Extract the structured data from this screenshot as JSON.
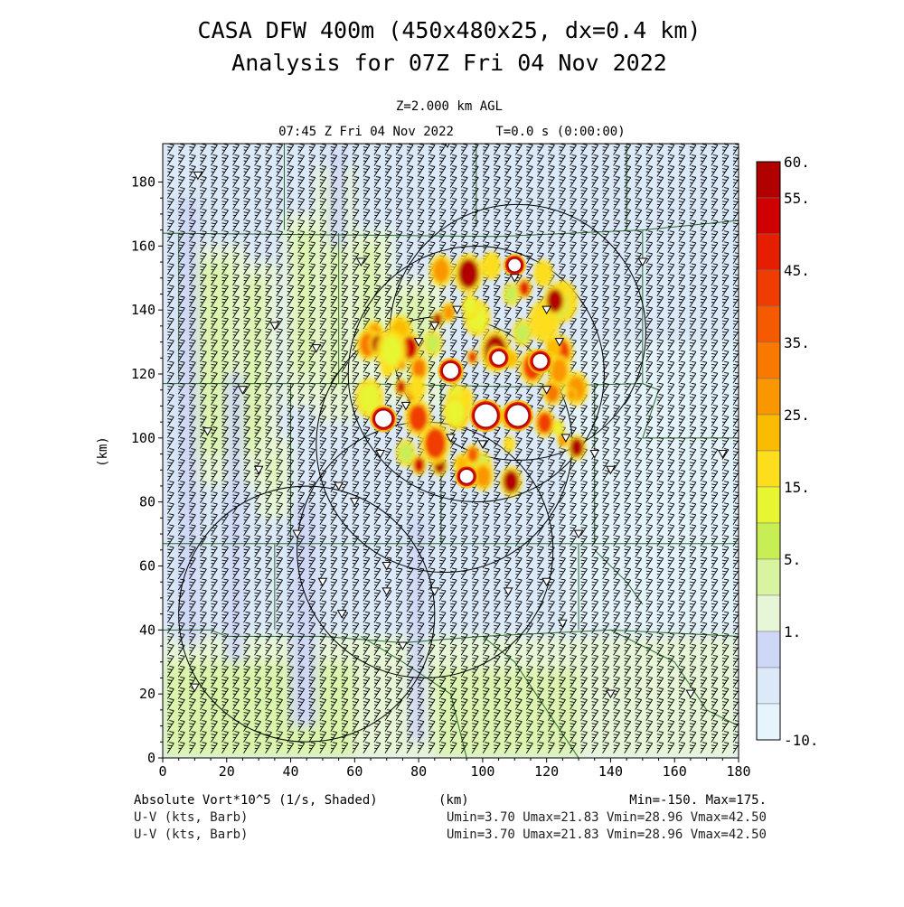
{
  "header": {
    "title_line1": "CASA DFW 400m (450x480x25, dx=0.4 km)",
    "title_line2": "Analysis for 07Z Fri 04 Nov 2022",
    "level": "Z=2.000 km AGL",
    "valid_time": "07:45 Z Fri 04 Nov 2022",
    "forecast_time": "T=0.0 s (0:00:00)"
  },
  "footer": {
    "shaded_field": "Absolute Vort*10^5 (1/s, Shaded)",
    "x_unit": "(km)",
    "shaded_range": "Min=-150. Max=175.",
    "barb_field_1": "U-V (kts, Barb)",
    "barb_range_1": "Umin=3.70 Umax=21.83 Vmin=28.96 Vmax=42.50",
    "barb_field_2": "U-V (kts, Barb)",
    "barb_range_2": "Umin=3.70 Umax=21.83 Vmin=28.96 Vmax=42.50"
  },
  "chart_data": {
    "type": "heatmap",
    "field": "Absolute Vort*10^5 (1/s)",
    "min": -150,
    "max": 175,
    "xlabel": "",
    "ylabel": "(km)",
    "xlim": [
      0,
      180
    ],
    "ylim": [
      0,
      192
    ],
    "x_ticks": [
      0,
      20,
      40,
      60,
      80,
      100,
      120,
      140,
      160,
      180
    ],
    "y_ticks": [
      0,
      20,
      40,
      60,
      80,
      100,
      120,
      140,
      160,
      180
    ],
    "x_tick_labels": [
      "0",
      "20",
      "40",
      "60",
      "80",
      "100",
      "120",
      "140",
      "160",
      "180"
    ],
    "y_tick_labels": [
      "0",
      "20",
      "40",
      "60",
      "80",
      "100",
      "120",
      "140",
      "160",
      "180"
    ],
    "colorbar": {
      "labels": [
        "60.",
        "55.",
        "45.",
        "35.",
        "25.",
        "15.",
        "5.",
        "1.",
        "-10."
      ],
      "levels": [
        60,
        55,
        50,
        45,
        40,
        35,
        30,
        25,
        20,
        15,
        10,
        5,
        3,
        1,
        0,
        -10
      ],
      "colors": [
        "#b00000",
        "#d00000",
        "#e61e00",
        "#f03c00",
        "#f55a00",
        "#f87800",
        "#f99600",
        "#fbbb00",
        "#fdde1c",
        "#e8f531",
        "#c8ee55",
        "#d8f4a0",
        "#e7f6d6",
        "#cfd7f6",
        "#dbe9f8",
        "#e6f4fb"
      ]
    },
    "radar_rings": [
      {
        "center": [
          98,
          120
        ],
        "radius_km": 40
      },
      {
        "center": [
          88,
          98
        ],
        "radius_km": 40
      },
      {
        "center": [
          82,
          65
        ],
        "radius_km": 40
      },
      {
        "center": [
          45,
          45
        ],
        "radius_km": 40
      },
      {
        "center": [
          111,
          133
        ],
        "radius_km": 40
      }
    ],
    "vortex_cores": [
      {
        "x": 101,
        "y": 107,
        "value": 175
      },
      {
        "x": 111,
        "y": 107,
        "value": 160
      },
      {
        "x": 69,
        "y": 106,
        "value": 120
      },
      {
        "x": 90,
        "y": 121,
        "value": 110
      },
      {
        "x": 118,
        "y": 124,
        "value": 100
      },
      {
        "x": 105,
        "y": 125,
        "value": 90
      },
      {
        "x": 95,
        "y": 88,
        "value": 90
      },
      {
        "x": 110,
        "y": 154,
        "value": 80
      }
    ],
    "wind_barbs": {
      "units": "kts",
      "u_range": [
        3.7,
        21.83
      ],
      "v_range": [
        28.96,
        42.5
      ]
    },
    "grid": false,
    "legend": "right"
  }
}
